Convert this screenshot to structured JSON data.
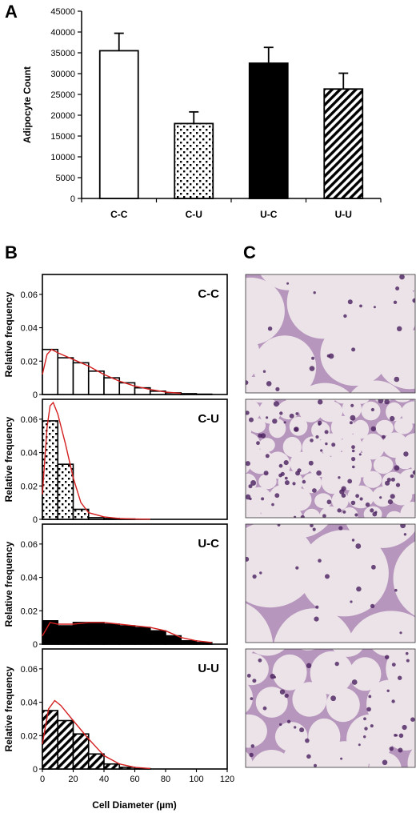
{
  "panels": {
    "a": "A",
    "b": "B",
    "c": "C"
  },
  "colors": {
    "fit_line": "#d42020",
    "micro_bg": "#ece3e8",
    "micro_stain": "#7a3f86",
    "micro_nuclei": "#4a1f5e"
  },
  "chart_data": [
    {
      "type": "bar",
      "panel": "A",
      "categories": [
        "C-C",
        "C-U",
        "U-C",
        "U-U"
      ],
      "values": [
        35500,
        18000,
        32500,
        26300
      ],
      "errors": [
        4200,
        2800,
        3800,
        3800
      ],
      "fills": [
        "white",
        "dotted",
        "black",
        "diagonal-stripes"
      ],
      "ylabel": "Adipocyte Count",
      "ylim": [
        0,
        45000
      ],
      "yticks": [
        0,
        5000,
        10000,
        15000,
        20000,
        25000,
        30000,
        35000,
        40000,
        45000
      ],
      "grid": false
    },
    {
      "type": "bar",
      "panel": "B",
      "xlabel": "Cell Diameter (µm)",
      "ylabel": "Relative frequency",
      "xlim": [
        0,
        120
      ],
      "ylim": [
        0,
        0.07
      ],
      "xticks": [
        0,
        20,
        40,
        60,
        80,
        100,
        120
      ],
      "yticks": [
        "0",
        "0.02",
        "0.04",
        "0.06"
      ],
      "bin_edges": [
        0,
        10,
        20,
        30,
        40,
        50,
        60,
        70,
        80,
        90,
        100,
        110
      ],
      "grid": false,
      "histograms": [
        {
          "label": "C-C",
          "fill": "white",
          "values": [
            0.027,
            0.022,
            0.019,
            0.014,
            0.01,
            0.007,
            0.004,
            0.002,
            0.001,
            0.0005,
            0.0002
          ],
          "fit": [
            [
              0,
              0.012
            ],
            [
              3,
              0.024
            ],
            [
              6,
              0.027
            ],
            [
              10,
              0.025
            ],
            [
              20,
              0.021
            ],
            [
              30,
              0.017
            ],
            [
              40,
              0.012
            ],
            [
              50,
              0.008
            ],
            [
              60,
              0.005
            ],
            [
              70,
              0.003
            ],
            [
              80,
              0.0015
            ],
            [
              90,
              0.0007
            ]
          ]
        },
        {
          "label": "C-U",
          "fill": "dotted",
          "values": [
            0.059,
            0.033,
            0.006,
            0.001,
            0.0005,
            0.0002,
            0,
            0,
            0,
            0,
            0
          ],
          "fit": [
            [
              0,
              0.015
            ],
            [
              3,
              0.055
            ],
            [
              5,
              0.068
            ],
            [
              7,
              0.07
            ],
            [
              10,
              0.063
            ],
            [
              15,
              0.045
            ],
            [
              20,
              0.025
            ],
            [
              25,
              0.01
            ],
            [
              30,
              0.004
            ],
            [
              40,
              0.0015
            ],
            [
              50,
              0.0005
            ],
            [
              60,
              0.0002
            ],
            [
              70,
              0.0001
            ]
          ]
        },
        {
          "label": "U-C",
          "fill": "black",
          "values": [
            0.014,
            0.011,
            0.013,
            0.013,
            0.012,
            0.011,
            0.01,
            0.008,
            0.005,
            0.002,
            0.001
          ],
          "fit": [
            [
              0,
              0.005
            ],
            [
              5,
              0.013
            ],
            [
              10,
              0.012
            ],
            [
              20,
              0.012
            ],
            [
              30,
              0.013
            ],
            [
              40,
              0.013
            ],
            [
              50,
              0.012
            ],
            [
              60,
              0.011
            ],
            [
              70,
              0.01
            ],
            [
              80,
              0.008
            ],
            [
              90,
              0.004
            ],
            [
              100,
              0.002
            ],
            [
              110,
              0.001
            ]
          ]
        },
        {
          "label": "U-U",
          "fill": "diagonal-stripes",
          "values": [
            0.035,
            0.029,
            0.021,
            0.009,
            0.003,
            0.001,
            0.0002,
            0,
            0,
            0,
            0
          ],
          "fit": [
            [
              0,
              0.015
            ],
            [
              4,
              0.036
            ],
            [
              8,
              0.041
            ],
            [
              12,
              0.038
            ],
            [
              20,
              0.029
            ],
            [
              30,
              0.018
            ],
            [
              40,
              0.008
            ],
            [
              50,
              0.003
            ],
            [
              60,
              0.001
            ],
            [
              70,
              0.0003
            ]
          ]
        }
      ]
    }
  ],
  "micrographs": [
    {
      "group": "C-C",
      "cell_size": "large"
    },
    {
      "group": "C-U",
      "cell_size": "small"
    },
    {
      "group": "U-C",
      "cell_size": "very large"
    },
    {
      "group": "U-U",
      "cell_size": "medium"
    }
  ]
}
